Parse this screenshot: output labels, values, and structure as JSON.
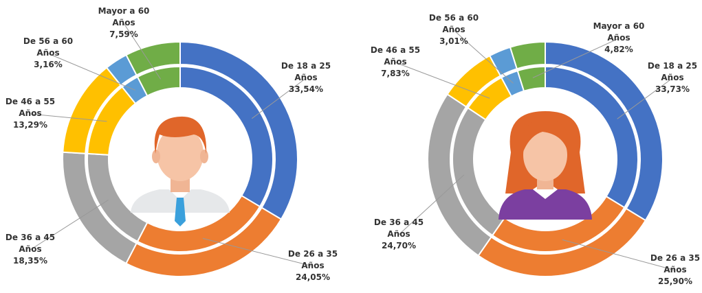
{
  "chart_data": [
    {
      "type": "donut",
      "categories": [
        "De 18 a 25 Años",
        "De 26 a 35 Años",
        "De 36 a 45 Años",
        "De 46 a 55 Años",
        "De 56 a 60 Años",
        "Mayor a 60 Años"
      ],
      "values": [
        33.54,
        24.05,
        18.35,
        13.29,
        3.16,
        7.59
      ],
      "value_labels": [
        "33,54%",
        "24,05%",
        "18,35%",
        "13,29%",
        "3,16%",
        "7,59%"
      ],
      "colors": [
        "#4472c4",
        "#ed7d31",
        "#a5a5a5",
        "#ffc000",
        "#5b9bd5",
        "#70ad47"
      ]
    },
    {
      "type": "donut",
      "categories": [
        "De 18 a 25 Años",
        "De 26 a 35 Años",
        "De 36 a 45 Años",
        "De 46 a 55 Años",
        "De 56 a 60 Años",
        "Mayor a 60 Años"
      ],
      "values": [
        33.73,
        25.9,
        24.7,
        7.83,
        3.01,
        4.82
      ],
      "value_labels": [
        "33,73%",
        "25,90%",
        "24,70%",
        "7,83%",
        "3,01%",
        "4,82%"
      ],
      "colors": [
        "#4472c4",
        "#ed7d31",
        "#a5a5a5",
        "#ffc000",
        "#5b9bd5",
        "#70ad47"
      ]
    }
  ]
}
